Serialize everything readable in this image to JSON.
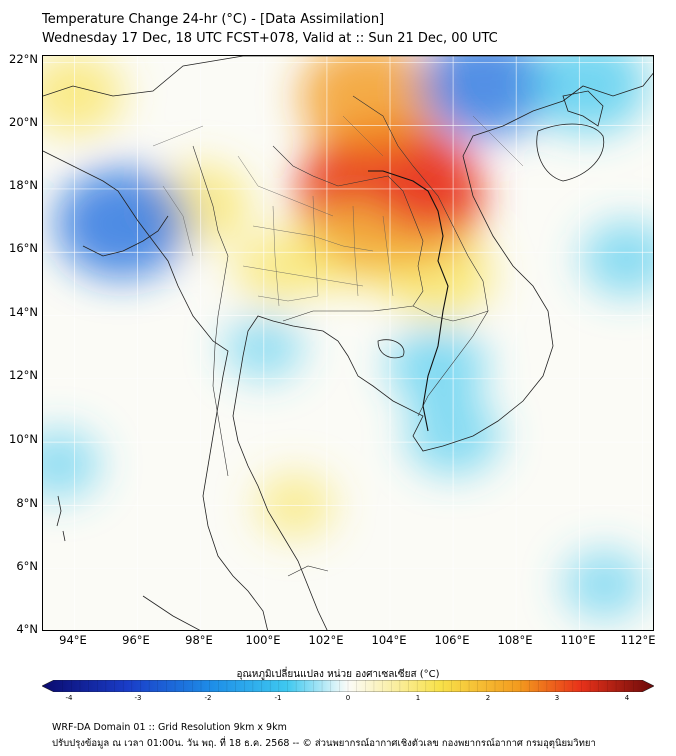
{
  "header": {
    "title_line1": "Temperature Change 24-hr (°C) - [Data Assimilation]",
    "title_line2": "Wednesday 17 Dec, 18 UTC FCST+078, Valid at :: Sun 21 Dec, 00 UTC"
  },
  "map": {
    "lat_labels": [
      "22°N",
      "20°N",
      "18°N",
      "16°N",
      "14°N",
      "12°N",
      "10°N",
      "8°N",
      "6°N",
      "4°N"
    ],
    "lon_labels": [
      "94°E",
      "96°E",
      "98°E",
      "100°E",
      "102°E",
      "104°E",
      "106°E",
      "108°E",
      "110°E",
      "112°E"
    ],
    "lat_range": [
      4,
      22.2
    ],
    "lon_range": [
      93,
      112.4
    ]
  },
  "colorbar": {
    "label": "อุณหภูมิเปลี่ยนแปลง หน่วย องศาเซลเซียส (°C)",
    "ticks": [
      "-4",
      "-3",
      "-2",
      "-1",
      "0",
      "1",
      "2",
      "3",
      "4"
    ],
    "range": [
      -4,
      4
    ],
    "colors": {
      "cold_extreme": "#0a0a6e",
      "cold": "#1e6fe0",
      "cool": "#3ec8f0",
      "neutral": "#fbfbf8",
      "warm": "#f8e14a",
      "hot": "#f39a1e",
      "hot_extreme": "#6b0a0a"
    }
  },
  "footer": {
    "line1": "WRF-DA Domain 01 :: Grid Resolution 9km x 9km",
    "line2": "ปรับปรุงข้อมูล ณ เวลา 01:00น. วัน พฤ. ที่ 18 ธ.ค. 2568 -- © ส่วนพยากรณ์อากาศเชิงตัวเลข กองพยากรณ์อากาศ กรมอุตุนิยมวิทยา"
  },
  "anomalies": [
    {
      "lon": 104.0,
      "lat": 17.8,
      "value": 3.2
    },
    {
      "lon": 103.3,
      "lat": 20.9,
      "value": 2.0
    },
    {
      "lon": 102.8,
      "lat": 16.2,
      "value": 1.2
    },
    {
      "lon": 105.5,
      "lat": 15.3,
      "value": 1.3
    },
    {
      "lon": 98.0,
      "lat": 17.5,
      "value": 1.0
    },
    {
      "lon": 94.0,
      "lat": 21.0,
      "value": 1.0
    },
    {
      "lon": 100.5,
      "lat": 15.5,
      "value": 0.8
    },
    {
      "lon": 95.5,
      "lat": 16.9,
      "value": -1.9
    },
    {
      "lon": 107.0,
      "lat": 21.3,
      "value": -1.8
    },
    {
      "lon": 110.3,
      "lat": 21.3,
      "value": -1.5
    },
    {
      "lon": 105.5,
      "lat": 12.4,
      "value": -1.0
    },
    {
      "lon": 106.0,
      "lat": 10.2,
      "value": -0.9
    },
    {
      "lon": 111.5,
      "lat": 15.8,
      "value": -0.8
    },
    {
      "lon": 110.8,
      "lat": 5.5,
      "value": -0.6
    },
    {
      "lon": 93.5,
      "lat": 9.3,
      "value": -0.6
    },
    {
      "lon": 100.0,
      "lat": 13.0,
      "value": -0.5
    },
    {
      "lon": 101.0,
      "lat": 8.0,
      "value": 0.5
    }
  ]
}
